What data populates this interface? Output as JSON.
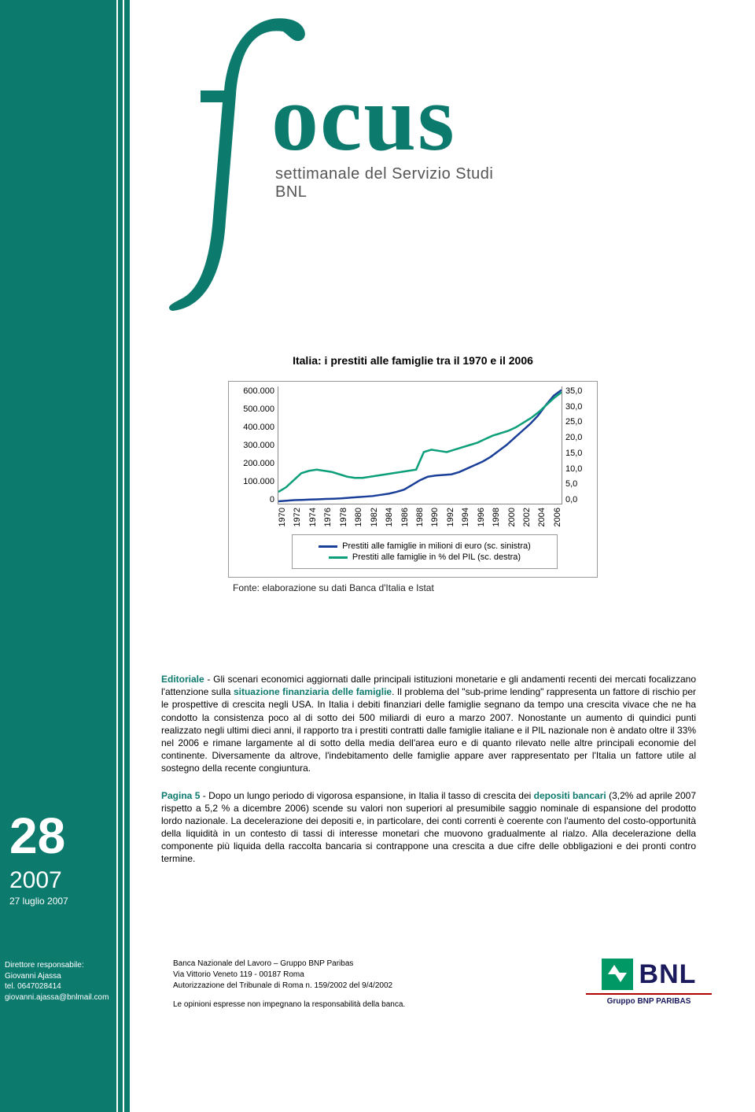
{
  "logo": {
    "word": "ocus",
    "subtitle": "settimanale del Servizio Studi BNL",
    "color": "#0d7a6e"
  },
  "chart": {
    "title": "Italia: i prestiti alle famiglie tra il 1970 e il 2006",
    "type": "line-dual-axis",
    "background_color": "#ffffff",
    "border_color": "#999999",
    "title_fontsize": 14,
    "axis_fontsize": 11,
    "left_axis": {
      "labels": [
        "600.000",
        "500.000",
        "400.000",
        "300.000",
        "200.000",
        "100.000",
        "0"
      ],
      "lim": [
        0,
        600000
      ]
    },
    "right_axis": {
      "labels": [
        "35,0",
        "30,0",
        "25,0",
        "20,0",
        "15,0",
        "10,0",
        "5,0",
        "0,0"
      ],
      "lim": [
        0,
        35
      ]
    },
    "x_labels": [
      "1970",
      "1972",
      "1974",
      "1976",
      "1978",
      "1980",
      "1982",
      "1984",
      "1986",
      "1988",
      "1990",
      "1992",
      "1994",
      "1996",
      "1998",
      "2000",
      "2002",
      "2004",
      "2006"
    ],
    "series": [
      {
        "name": "prestiti-milioni",
        "legend": "Prestiti alle famiglie in milioni di euro (sc. sinistra)",
        "color": "#1a3f99",
        "line_width": 2.5,
        "values_pct_of_height": [
          98,
          97.5,
          97,
          96.8,
          96.5,
          96.3,
          96,
          95.8,
          95.5,
          95,
          94.5,
          94,
          93.5,
          92.5,
          91.5,
          90,
          88,
          84,
          80,
          77,
          76,
          75.5,
          75,
          73,
          70,
          67,
          64,
          60,
          55,
          50,
          44,
          38,
          32,
          25,
          16,
          8,
          3
        ]
      },
      {
        "name": "prestiti-pct-pil",
        "legend": "Prestiti alle famiglie in % del PIL (sc. destra)",
        "color": "#0d9f7a",
        "line_width": 2.5,
        "values_pct_of_height": [
          90,
          86,
          80,
          74,
          72,
          71,
          72,
          73,
          75,
          77,
          78,
          78,
          77,
          76,
          75,
          74,
          73,
          72,
          71,
          56,
          54,
          55,
          56,
          54,
          52,
          50,
          48,
          45,
          42,
          40,
          38,
          35,
          31,
          27,
          22,
          16,
          10,
          5
        ]
      }
    ],
    "source": "Fonte: elaborazione su dati Banca d'Italia e Istat"
  },
  "editorial": {
    "label": "Editoriale",
    "highlight1": "situazione finanziaria delle famiglie",
    "text_before_h1": " - Gli scenari economici aggiornati dalle principali istituzioni monetarie e gli andamenti recenti dei mercati focalizzano l'attenzione sulla ",
    "text_after_h1": ". Il problema del \"sub-prime lending\" rappresenta un fattore di rischio per le prospettive di crescita negli USA. In Italia i debiti finanziari delle famiglie segnano da tempo una crescita vivace che ne ha condotto la consistenza poco al di sotto dei 500 miliardi di euro a marzo 2007. Nonostante un aumento di quindici punti realizzato negli ultimi dieci anni, il rapporto tra i prestiti contratti dalle famiglie italiane e il PIL nazionale non è andato oltre il 33% nel 2006 e rimane largamente al di sotto della media dell'area euro e di quanto rilevato nelle altre principali economie del continente. Diversamente da altrove, l'indebitamento delle famiglie appare aver rappresentato per l'Italia un fattore utile al sostegno della recente congiuntura."
  },
  "page5": {
    "label": "Pagina 5",
    "highlight": "depositi bancari",
    "text_before": " - Dopo un lungo periodo di vigorosa espansione, in Italia il tasso di crescita dei ",
    "text_after": " (3,2% ad aprile 2007 rispetto a 5,2 % a dicembre 2006) scende su valori non superiori al presumibile saggio nominale di espansione del prodotto lordo nazionale. La decelerazione dei depositi e, in particolare, dei conti correnti è coerente con l'aumento del costo-opportunità della liquidità in un contesto di tassi di interesse monetari che muovono gradualmente al rialzo. Alla decelerazione della componente più liquida della raccolta bancaria si contrappone una crescita a due cifre delle obbligazioni e dei pronti contro termine."
  },
  "issue": {
    "number": "28",
    "year": "2007",
    "date": "27 luglio 2007"
  },
  "director": {
    "title": "Direttore responsabile:",
    "name": "Giovanni Ajassa",
    "tel": "tel. 0647028414",
    "email": "giovanni.ajassa@bnlmail.com"
  },
  "footer": {
    "line1": "Banca Nazionale del Lavoro – Gruppo BNP Paribas",
    "line2": "Via Vittorio Veneto 119 - 00187 Roma",
    "line3": "Autorizzazione del Tribunale di Roma n. 159/2002 del 9/4/2002",
    "line4": "Le opinioni espresse non impegnano la responsabilità della banca."
  },
  "bnl": {
    "text": "BNL",
    "sub": "Gruppo BNP PARIBAS",
    "green": "#009966",
    "blue": "#1a1a5c",
    "red": "#b00000"
  },
  "colors": {
    "brand_teal": "#0d7a6e",
    "white": "#ffffff"
  }
}
